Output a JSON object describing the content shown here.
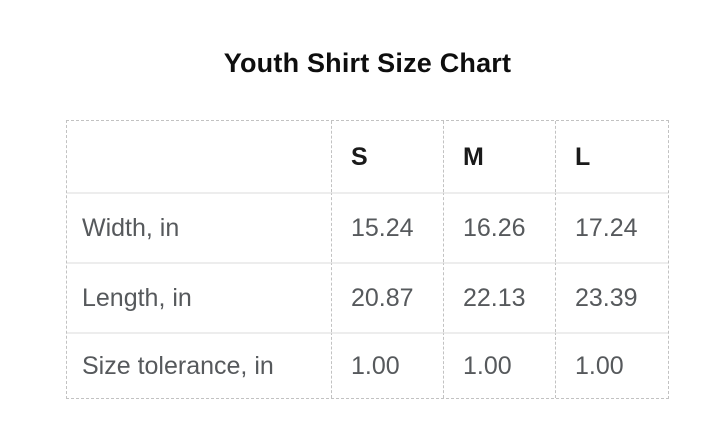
{
  "title": "Youth Shirt Size Chart",
  "chart_data": {
    "type": "table",
    "title": "Youth Shirt Size Chart",
    "columns": [
      "",
      "S",
      "M",
      "L"
    ],
    "rows": [
      {
        "label": "Width, in",
        "values": [
          "15.24",
          "16.26",
          "17.24"
        ]
      },
      {
        "label": "Length, in",
        "values": [
          "20.87",
          "22.13",
          "23.39"
        ]
      },
      {
        "label": "Size tolerance, in",
        "values": [
          "1.00",
          "1.00",
          "1.00"
        ]
      }
    ],
    "layout": {
      "grid": "dashed outer border and dashed column separators, light solid row separators",
      "legend": "none"
    }
  },
  "colors": {
    "background": "#ffffff",
    "title_text": "#0e0e0e",
    "header_text": "#1a1a1a",
    "body_text": "#56595c",
    "dashed_border": "#c2c2c2",
    "row_separator": "#ededed"
  }
}
